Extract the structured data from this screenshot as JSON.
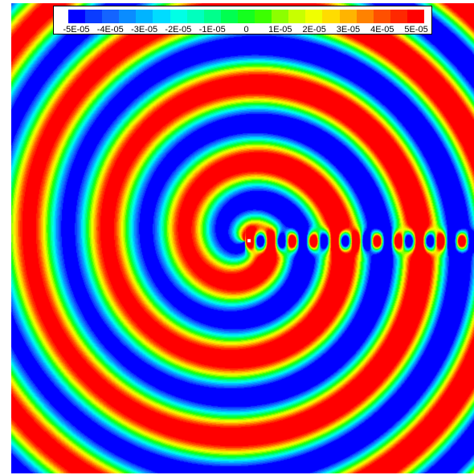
{
  "colorbar": {
    "labels": [
      "-5E-05",
      "-4E-05",
      "-3E-05",
      "-2E-05",
      "-1E-05",
      "0",
      "1E-05",
      "2E-05",
      "3E-05",
      "4E-05",
      "5E-05"
    ],
    "colors": [
      "#0000ff",
      "#0a3cff",
      "#1464ff",
      "#0a8cff",
      "#00b4ff",
      "#00dcff",
      "#00ffe6",
      "#00ffbe",
      "#00ff8c",
      "#00ff50",
      "#14ff1e",
      "#3cff00",
      "#8cff00",
      "#c8ff00",
      "#f0ff00",
      "#ffdc00",
      "#ffb400",
      "#ff8200",
      "#ff5000",
      "#ff2800",
      "#ff0000"
    ]
  },
  "plot": {
    "type": "contour",
    "range": [
      -5e-05,
      5e-05
    ]
  }
}
